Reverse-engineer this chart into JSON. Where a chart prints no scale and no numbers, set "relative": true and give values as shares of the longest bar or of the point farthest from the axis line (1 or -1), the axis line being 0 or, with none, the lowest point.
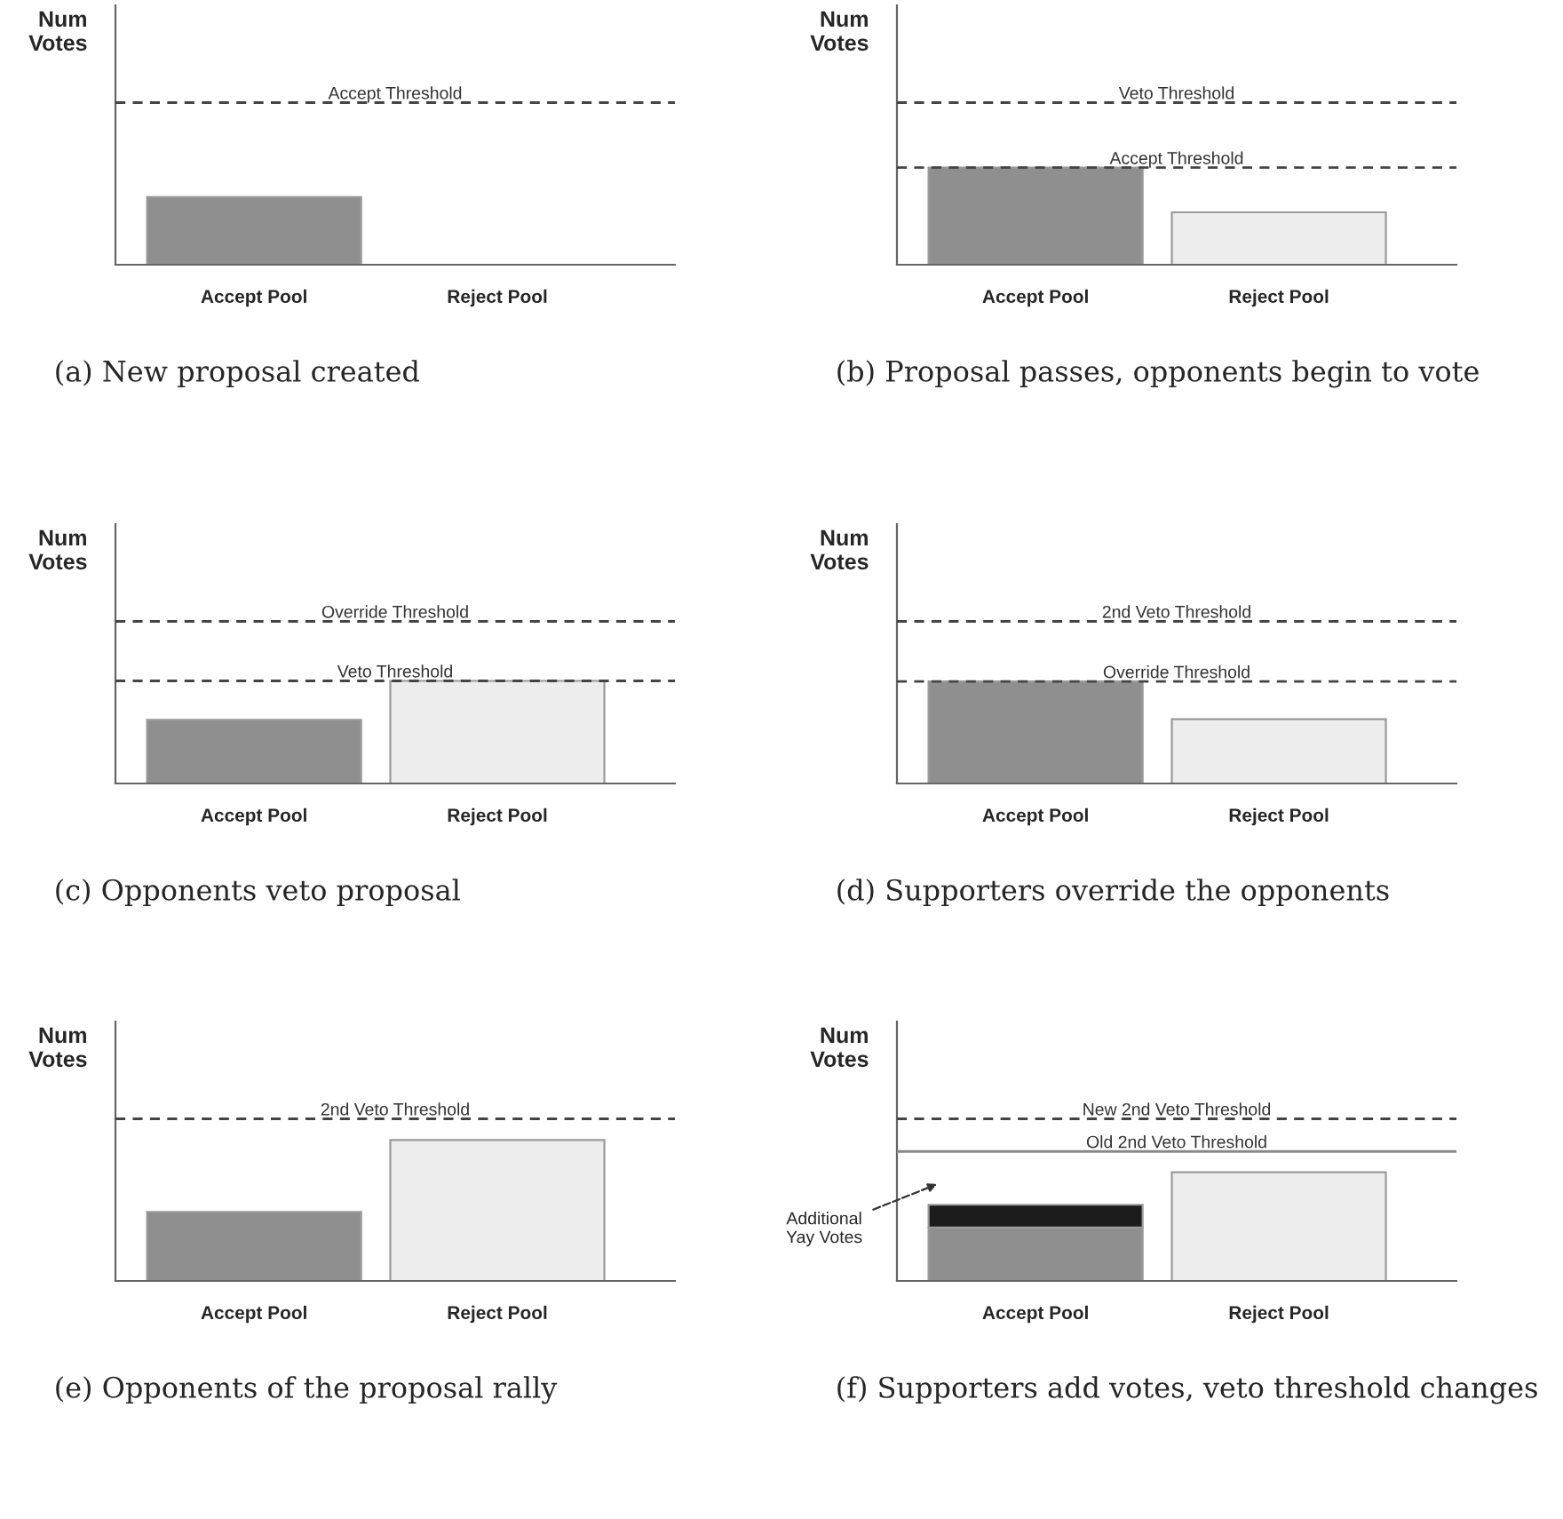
{
  "chart_data": [
    {
      "type": "bar",
      "title": "(a) New proposal created",
      "ylabel": "Num\nVotes",
      "relative": true,
      "tick_labels": "x",
      "categories": [
        "Accept Pool",
        "Reject Pool"
      ],
      "values": [
        1,
        null
      ],
      "colors": [
        "#8f8f8f",
        "#ededed"
      ],
      "ref_lines": [
        {
          "axis": "y",
          "value": 2.4,
          "label": "Accept Threshold",
          "color": "#444444",
          "line_style": "dashed"
        }
      ]
    },
    {
      "type": "bar",
      "title": "(b) Proposal passes, opponents begin to vote",
      "ylabel": "Num\nVotes",
      "relative": true,
      "tick_labels": "x",
      "categories": [
        "Accept Pool",
        "Reject Pool"
      ],
      "values": [
        1,
        0.54
      ],
      "colors": [
        "#8f8f8f",
        "#ededed"
      ],
      "ref_lines": [
        {
          "axis": "y",
          "value": 1.67,
          "label": "Veto Threshold",
          "color": "#444444",
          "line_style": "dashed"
        },
        {
          "axis": "y",
          "value": 1.0,
          "label": "Accept Threshold",
          "color": "#444444",
          "line_style": "dashed"
        }
      ]
    },
    {
      "type": "bar",
      "title": "(c) Opponents veto proposal",
      "ylabel": "Num\nVotes",
      "relative": true,
      "tick_labels": "x",
      "categories": [
        "Accept Pool",
        "Reject Pool"
      ],
      "values": [
        0.62,
        1
      ],
      "colors": [
        "#8f8f8f",
        "#ededed"
      ],
      "ref_lines": [
        {
          "axis": "y",
          "value": 1.58,
          "label": "Override Threshold",
          "color": "#444444",
          "line_style": "dashed"
        },
        {
          "axis": "y",
          "value": 1.0,
          "label": "Veto Threshold",
          "color": "#444444",
          "line_style": "dashed"
        }
      ]
    },
    {
      "type": "bar",
      "title": "(d) Supporters override the opponents",
      "ylabel": "Num\nVotes",
      "relative": true,
      "tick_labels": "x",
      "categories": [
        "Accept Pool",
        "Reject Pool"
      ],
      "values": [
        1,
        0.63
      ],
      "colors": [
        "#8f8f8f",
        "#ededed"
      ],
      "ref_lines": [
        {
          "axis": "y",
          "value": 1.59,
          "label": "2nd Veto Threshold",
          "color": "#444444",
          "line_style": "dashed"
        },
        {
          "axis": "y",
          "value": 1.0,
          "label": "Override Threshold",
          "color": "#444444",
          "line_style": "dashed"
        }
      ]
    },
    {
      "type": "bar",
      "title": "(e) Opponents of the proposal rally",
      "ylabel": "Num\nVotes",
      "relative": true,
      "tick_labels": "x",
      "categories": [
        "Accept Pool",
        "Reject Pool"
      ],
      "values": [
        0.49,
        1
      ],
      "colors": [
        "#8f8f8f",
        "#ededed"
      ],
      "ref_lines": [
        {
          "axis": "y",
          "value": 1.15,
          "label": "2nd Veto Threshold",
          "color": "#444444",
          "line_style": "dashed"
        }
      ]
    },
    {
      "type": "bar",
      "title": "(f) Supporters add votes, veto threshold changes",
      "ylabel": "Num\nVotes",
      "relative": true,
      "tick_labels": "x",
      "stacked": true,
      "categories": [
        "Accept Pool",
        "Reject Pool"
      ],
      "series": [
        {
          "values": [
            0.49,
            1
          ],
          "colors": [
            "#8f8f8f",
            "#ededed"
          ]
        },
        {
          "values": [
            0.21,
            null
          ],
          "colors": [
            "#1c1c1c",
            null
          ]
        }
      ],
      "ref_lines": [
        {
          "axis": "y",
          "value": 1.49,
          "label": "New 2nd Veto Threshold",
          "color": "#444444",
          "line_style": "dashed"
        },
        {
          "axis": "y",
          "value": 1.19,
          "label": "Old 2nd Veto Threshold",
          "color": "#888888",
          "line_style": "solid"
        }
      ],
      "annotations": [
        "Additional\nYay Votes"
      ]
    }
  ]
}
